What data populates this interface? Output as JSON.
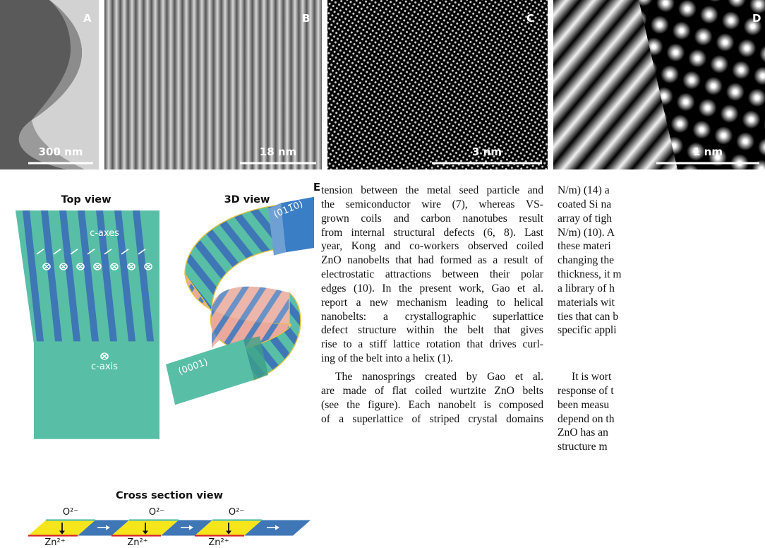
{
  "panels": [
    {
      "label": "A",
      "scale": "300 nm"
    },
    {
      "label": "B",
      "scale": "18 nm"
    },
    {
      "label": "C",
      "scale": "3 nm"
    },
    {
      "label": "D",
      "scale": "1 nm"
    }
  ],
  "figure_e": {
    "label": "E",
    "top_view": {
      "title": "Top view",
      "upper": "c-axes",
      "lower": "c-axis"
    },
    "view_3d": {
      "title": "3D view",
      "face_top": "(011̅0)",
      "face_bottom": "(0001)"
    },
    "cross_section": {
      "title": "Cross section view",
      "top_ions": [
        "O²⁻",
        "O²⁻",
        "O²⁻"
      ],
      "bottom_ions": [
        "Zn²⁺",
        "Zn²⁺",
        "Zn²⁺"
      ]
    }
  },
  "columns": [
    {
      "paragraphs": [
        {
          "lines": [
            "tension between the metal seed particle and",
            "the semiconductor wire (7), whereas VS-",
            "grown coils and carbon nanotubes result",
            "from internal structural defects (6, 8). Last",
            "year, Kong and co-workers observed coiled",
            "ZnO nanobelts that had formed as a result of",
            "electrostatic attractions between their polar",
            "edges (10). In the present work, Gao et al.",
            "report a new mechanism leading to helical",
            "nanobelts: a crystallographic superlattice",
            "defect structure within the belt that gives",
            "rise to a stiff lattice rotation that drives curl-",
            "ing of the belt into a helix (1)."
          ]
        },
        {
          "lines": [
            "The nanosprings created by Gao et al.",
            "are made of flat coiled wurtzite ZnO belts",
            "(see the figure). Each nanobelt is composed",
            "of a superlattice of striped crystal domains"
          ]
        }
      ]
    },
    {
      "paragraphs": [
        {
          "lines": [
            "N/m) (14) a",
            "coated Si na",
            "array of tigh",
            "N/m) (10). A",
            "these materi",
            "changing the",
            "thickness, it m",
            "a library of h",
            "materials wit",
            "ties that can b",
            "specific appli"
          ]
        },
        {
          "lines": [
            "It is wort",
            "response of t",
            "been measu",
            "depend on th",
            "ZnO has an",
            "structure m"
          ]
        }
      ]
    }
  ]
}
